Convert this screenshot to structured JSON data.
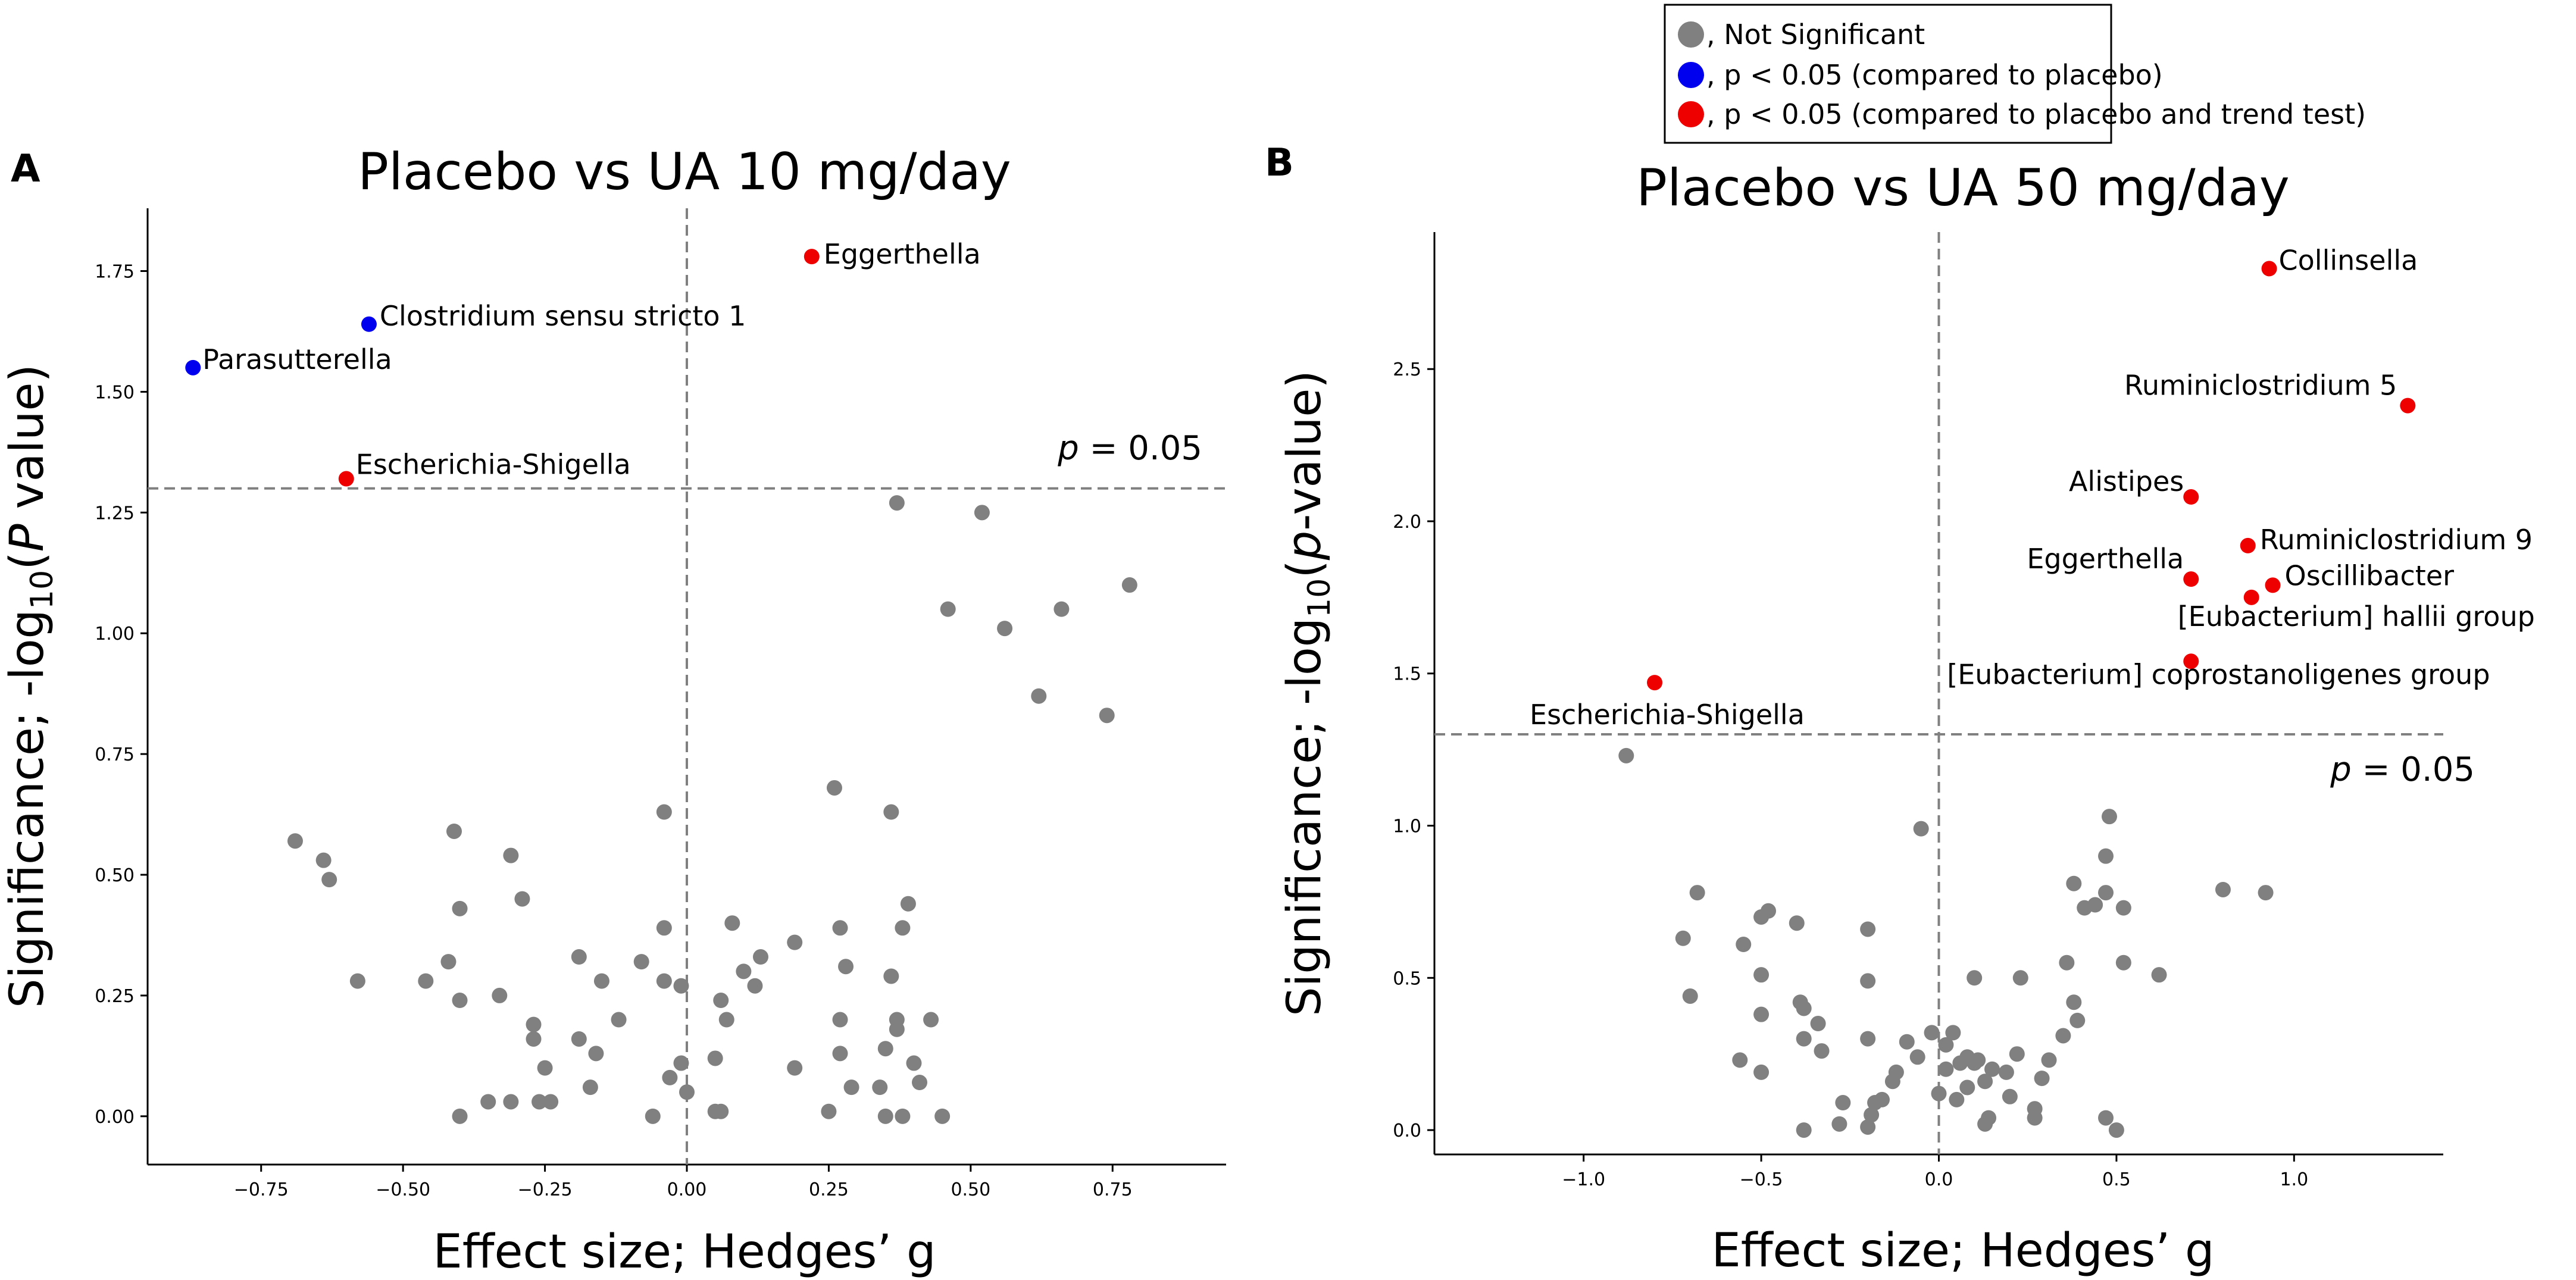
{
  "colors": {
    "ns": "#808080",
    "p_placebo": "#0000ee",
    "p_trend": "#ee0000"
  },
  "legend": {
    "items": [
      {
        "key": "ns",
        "label": ", Not Significant",
        "color": "#808080"
      },
      {
        "key": "p_placebo",
        "label": ", p < 0.05 (compared to placebo)",
        "color": "#0000ee"
      },
      {
        "key": "p_trend",
        "label": ", p < 0.05 (compared to placebo and trend test)",
        "color": "#ee0000"
      }
    ]
  },
  "chart_data": [
    {
      "type": "scatter",
      "panel_label": "A",
      "title": "Placebo vs UA 10 mg/day",
      "xlabel": "Effect size; Hedges’ g",
      "ylabel_parts": {
        "a": "Significance; -log",
        "sub": "10",
        "b": "(",
        "italic": "P",
        "c": " value)"
      },
      "xlim": [
        -0.95,
        0.95
      ],
      "ylim": [
        -0.1,
        1.88
      ],
      "xticks": [
        -0.75,
        -0.5,
        -0.25,
        0.0,
        0.25,
        0.5,
        0.75
      ],
      "xtick_labels": [
        "−0.75",
        "−0.50",
        "−0.25",
        "0.00",
        "0.25",
        "0.50",
        "0.75"
      ],
      "yticks": [
        0.0,
        0.25,
        0.5,
        0.75,
        1.0,
        1.25,
        1.5,
        1.75
      ],
      "ytick_labels": [
        "0.00",
        "0.25",
        "0.50",
        "0.75",
        "1.00",
        "1.25",
        "1.50",
        "1.75"
      ],
      "threshold": 1.3,
      "threshold_label": {
        "italic": "p",
        "rest": " = 0.05"
      },
      "labeled_points": [
        {
          "name": "Eggerthella",
          "x": 0.22,
          "y": 1.78,
          "group": "p_trend"
        },
        {
          "name": "Clostridium sensu stricto 1",
          "x": -0.56,
          "y": 1.64,
          "group": "p_placebo"
        },
        {
          "name": "Parasutterella",
          "x": -0.87,
          "y": 1.55,
          "group": "p_placebo"
        },
        {
          "name": "Escherichia-Shigella",
          "x": -0.6,
          "y": 1.32,
          "group": "p_trend"
        }
      ],
      "points": [
        [
          0.37,
          1.27
        ],
        [
          0.52,
          1.25
        ],
        [
          0.78,
          1.1
        ],
        [
          0.46,
          1.05
        ],
        [
          0.66,
          1.05
        ],
        [
          0.56,
          1.01
        ],
        [
          0.62,
          0.87
        ],
        [
          0.74,
          0.83
        ],
        [
          -0.69,
          0.57
        ],
        [
          -0.64,
          0.53
        ],
        [
          -0.63,
          0.49
        ],
        [
          -0.58,
          0.28
        ],
        [
          -0.46,
          0.28
        ],
        [
          -0.42,
          0.32
        ],
        [
          -0.41,
          0.59
        ],
        [
          -0.4,
          0.43
        ],
        [
          -0.4,
          0.24
        ],
        [
          -0.4,
          0.0
        ],
        [
          -0.35,
          0.03
        ],
        [
          -0.33,
          0.25
        ],
        [
          -0.31,
          0.54
        ],
        [
          -0.31,
          0.03
        ],
        [
          -0.29,
          0.45
        ],
        [
          -0.27,
          0.19
        ],
        [
          -0.27,
          0.16
        ],
        [
          -0.26,
          0.03
        ],
        [
          -0.25,
          0.1
        ],
        [
          -0.24,
          0.03
        ],
        [
          -0.19,
          0.33
        ],
        [
          -0.19,
          0.16
        ],
        [
          -0.17,
          0.06
        ],
        [
          -0.16,
          0.13
        ],
        [
          -0.15,
          0.28
        ],
        [
          -0.12,
          0.2
        ],
        [
          -0.08,
          0.32
        ],
        [
          -0.06,
          0.0
        ],
        [
          -0.04,
          0.63
        ],
        [
          -0.04,
          0.39
        ],
        [
          -0.04,
          0.28
        ],
        [
          -0.03,
          0.08
        ],
        [
          -0.01,
          0.27
        ],
        [
          -0.01,
          0.11
        ],
        [
          0.0,
          0.05
        ],
        [
          0.05,
          0.12
        ],
        [
          0.05,
          0.01
        ],
        [
          0.06,
          0.01
        ],
        [
          0.06,
          0.24
        ],
        [
          0.07,
          0.2
        ],
        [
          0.08,
          0.4
        ],
        [
          0.1,
          0.3
        ],
        [
          0.12,
          0.27
        ],
        [
          0.13,
          0.33
        ],
        [
          0.19,
          0.36
        ],
        [
          0.19,
          0.1
        ],
        [
          0.25,
          0.01
        ],
        [
          0.26,
          0.68
        ],
        [
          0.27,
          0.39
        ],
        [
          0.27,
          0.2
        ],
        [
          0.28,
          0.31
        ],
        [
          0.27,
          0.13
        ],
        [
          0.29,
          0.06
        ],
        [
          0.34,
          0.06
        ],
        [
          0.35,
          0.14
        ],
        [
          0.35,
          0.0
        ],
        [
          0.36,
          0.63
        ],
        [
          0.36,
          0.29
        ],
        [
          0.37,
          0.2
        ],
        [
          0.37,
          0.18
        ],
        [
          0.38,
          0.0
        ],
        [
          0.38,
          0.39
        ],
        [
          0.39,
          0.44
        ],
        [
          0.4,
          0.11
        ],
        [
          0.41,
          0.07
        ],
        [
          0.43,
          0.2
        ],
        [
          0.45,
          0.0
        ]
      ]
    },
    {
      "type": "scatter",
      "panel_label": "B",
      "title": "Placebo vs UA 50 mg/day",
      "xlabel": "Effect size; Hedges’ g",
      "ylabel_parts": {
        "a": "Significance; -log",
        "sub": "10",
        "b": "(",
        "italic": "p",
        "c": "-value)"
      },
      "xlim": [
        -1.42,
        1.42
      ],
      "ylim": [
        -0.08,
        2.95
      ],
      "xticks": [
        -1.0,
        -0.5,
        0.0,
        0.5,
        1.0
      ],
      "xtick_labels": [
        "−1.0",
        "−0.5",
        "0.0",
        "0.5",
        "1.0"
      ],
      "yticks": [
        0.0,
        0.5,
        1.0,
        1.5,
        2.0,
        2.5
      ],
      "ytick_labels": [
        "0.0",
        "0.5",
        "1.0",
        "1.5",
        "2.0",
        "2.5"
      ],
      "threshold": 1.3,
      "threshold_label": {
        "italic": "p",
        "rest": " = 0.05"
      },
      "labeled_points": [
        {
          "name": "Collinsella",
          "x": 0.93,
          "y": 2.83,
          "group": "p_trend"
        },
        {
          "name": "Ruminiclostridium 5",
          "x": 1.32,
          "y": 2.38,
          "group": "p_trend"
        },
        {
          "name": "Alistipes",
          "x": 0.71,
          "y": 2.08,
          "group": "p_trend"
        },
        {
          "name": "Ruminiclostridium 9",
          "x": 0.87,
          "y": 1.92,
          "group": "p_trend"
        },
        {
          "name": "Eggerthella",
          "x": 0.71,
          "y": 1.81,
          "group": "p_trend"
        },
        {
          "name": "Oscillibacter",
          "x": 0.94,
          "y": 1.79,
          "group": "p_trend"
        },
        {
          "name": "[Eubacterium] hallii group",
          "x": 0.88,
          "y": 1.75,
          "group": "p_trend"
        },
        {
          "name": "[Eubacterium] coprostanoligenes group",
          "x": 0.71,
          "y": 1.54,
          "group": "p_trend"
        },
        {
          "name": "Escherichia-Shigella",
          "x": -0.8,
          "y": 1.47,
          "group": "p_trend"
        }
      ],
      "points": [
        [
          -0.88,
          1.23
        ],
        [
          -0.05,
          0.99
        ],
        [
          0.48,
          1.03
        ],
        [
          0.47,
          0.9
        ],
        [
          0.47,
          0.78
        ],
        [
          0.8,
          0.79
        ],
        [
          0.92,
          0.78
        ],
        [
          0.38,
          0.81
        ],
        [
          0.41,
          0.73
        ],
        [
          0.44,
          0.74
        ],
        [
          0.52,
          0.73
        ],
        [
          0.62,
          0.51
        ],
        [
          0.52,
          0.55
        ],
        [
          0.36,
          0.55
        ],
        [
          0.38,
          0.42
        ],
        [
          0.39,
          0.36
        ],
        [
          0.35,
          0.31
        ],
        [
          0.31,
          0.23
        ],
        [
          0.29,
          0.17
        ],
        [
          0.27,
          0.07
        ],
        [
          0.27,
          0.04
        ],
        [
          0.2,
          0.11
        ],
        [
          0.13,
          0.16
        ],
        [
          0.08,
          0.14
        ],
        [
          0.08,
          0.24
        ],
        [
          0.06,
          0.22
        ],
        [
          0.05,
          0.1
        ],
        [
          0.04,
          0.32
        ],
        [
          0.02,
          0.2
        ],
        [
          0.0,
          0.12
        ],
        [
          -0.02,
          0.32
        ],
        [
          -0.06,
          0.24
        ],
        [
          -0.09,
          0.29
        ],
        [
          -0.12,
          0.19
        ],
        [
          -0.13,
          0.16
        ],
        [
          -0.16,
          0.1
        ],
        [
          -0.18,
          0.09
        ],
        [
          -0.19,
          0.05
        ],
        [
          -0.2,
          0.01
        ],
        [
          -0.2,
          0.3
        ],
        [
          -0.2,
          0.66
        ],
        [
          -0.2,
          0.49
        ],
        [
          -0.27,
          0.09
        ],
        [
          -0.28,
          0.02
        ],
        [
          -0.33,
          0.26
        ],
        [
          -0.34,
          0.35
        ],
        [
          -0.38,
          0.4
        ],
        [
          -0.39,
          0.42
        ],
        [
          -0.38,
          0.3
        ],
        [
          -0.38,
          0.0
        ],
        [
          -0.4,
          0.68
        ],
        [
          -0.48,
          0.72
        ],
        [
          -0.5,
          0.7
        ],
        [
          -0.5,
          0.51
        ],
        [
          -0.5,
          0.38
        ],
        [
          -0.5,
          0.19
        ],
        [
          -0.55,
          0.61
        ],
        [
          -0.56,
          0.23
        ],
        [
          -0.68,
          0.78
        ],
        [
          -0.7,
          0.44
        ],
        [
          -0.72,
          0.63
        ],
        [
          0.1,
          0.22
        ],
        [
          0.11,
          0.23
        ],
        [
          0.13,
          0.02
        ],
        [
          0.14,
          0.04
        ],
        [
          0.19,
          0.19
        ],
        [
          0.23,
          0.5
        ],
        [
          0.47,
          0.04
        ],
        [
          0.5,
          0.0
        ],
        [
          0.02,
          0.28
        ],
        [
          0.1,
          0.5
        ],
        [
          0.15,
          0.2
        ],
        [
          0.22,
          0.25
        ]
      ]
    }
  ]
}
